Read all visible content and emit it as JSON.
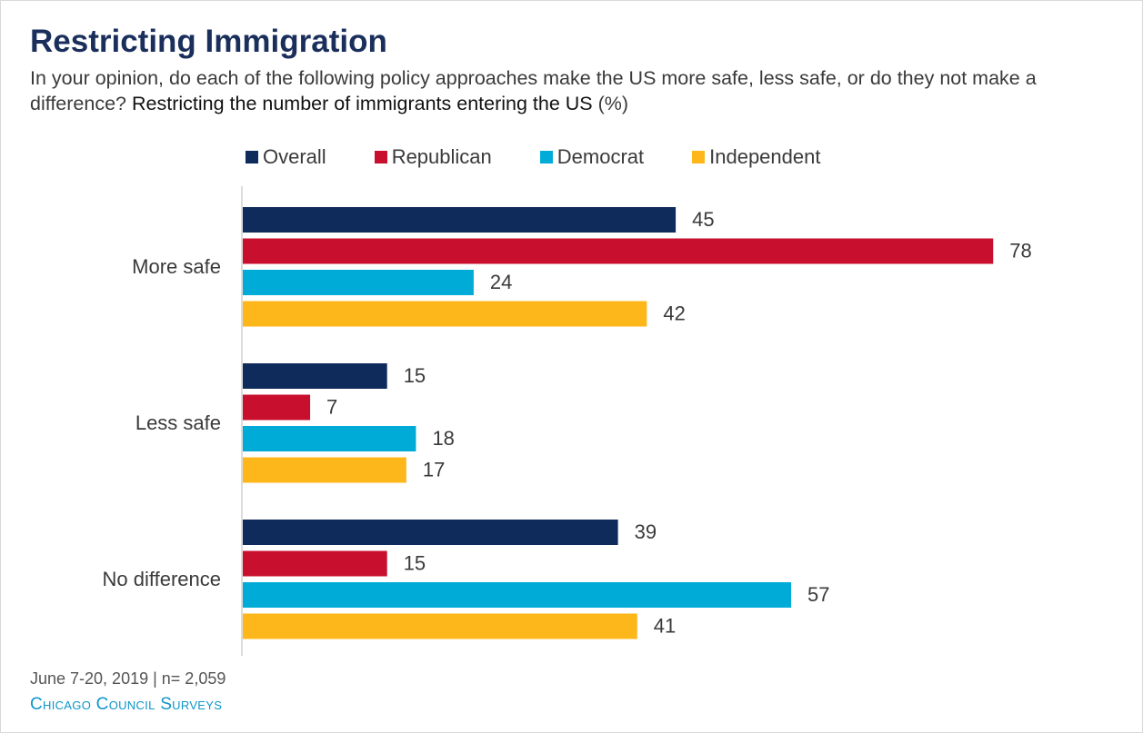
{
  "header": {
    "title": "Restricting Immigration",
    "question": "In your opinion, do each of the following policy approaches make the US more safe, less safe, or do they not make a difference?",
    "item": "Restricting the number of immigrants entering the US",
    "unit": "(%)"
  },
  "chart_data": {
    "type": "bar",
    "orientation": "horizontal",
    "title": "Restricting Immigration",
    "categories": [
      "More safe",
      "Less safe",
      "No difference"
    ],
    "series": [
      {
        "name": "Overall",
        "color": "#0f2b5b",
        "values": [
          45,
          15,
          39
        ]
      },
      {
        "name": "Republican",
        "color": "#c8102e",
        "values": [
          78,
          7,
          15
        ]
      },
      {
        "name": "Democrat",
        "color": "#00acd7",
        "values": [
          24,
          18,
          57
        ]
      },
      {
        "name": "Independent",
        "color": "#fdb71a",
        "values": [
          42,
          17,
          41
        ]
      }
    ],
    "xlim": [
      0,
      100
    ],
    "grid": false,
    "legend": "top",
    "data_labels": true
  },
  "footer": {
    "date_n": "June 7-20, 2019 | n= 2,059",
    "source": "Chicago Council Surveys"
  }
}
